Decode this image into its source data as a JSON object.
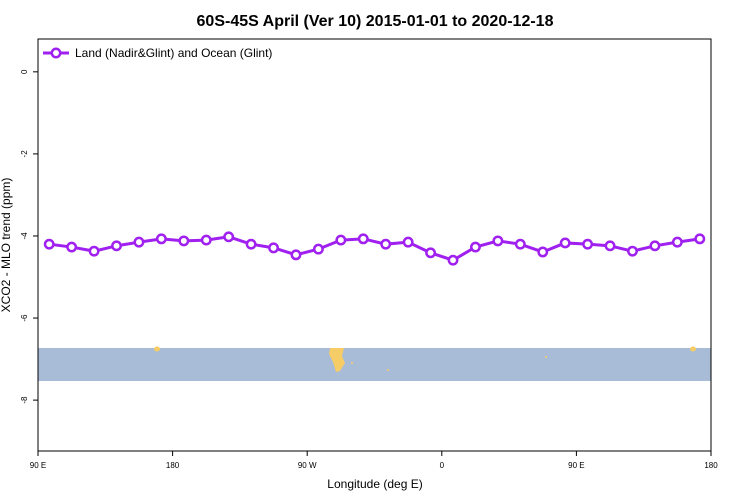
{
  "chart_data": {
    "type": "line",
    "title": "60S-45S April (Ver 10)   2015-01-01 to 2020-12-18",
    "xlabel": "Longitude (deg E)",
    "ylabel": "XCO2 - MLO trend (ppm)",
    "xlim": [
      90,
      540
    ],
    "xticks": [
      {
        "value": 90,
        "label": "90 E"
      },
      180,
      {
        "value": 270,
        "label": "90 W"
      },
      {
        "value": 360,
        "label": "0"
      },
      {
        "value": 450,
        "label": "90 E"
      },
      {
        "value": 540,
        "label": "180"
      }
    ],
    "ylim": [
      -9.24,
      0.8
    ],
    "yticks": [
      0,
      -2,
      -4,
      -6,
      -8
    ],
    "legend": "top-left",
    "x": [
      97.5,
      112.5,
      127.5,
      142.5,
      157.5,
      172.5,
      187.5,
      202.5,
      217.5,
      232.5,
      247.5,
      262.5,
      277.5,
      292.5,
      307.5,
      322.5,
      337.5,
      352.5,
      367.5,
      382.5,
      397.5,
      412.5,
      427.5,
      442.5,
      457.5,
      472.5,
      487.5,
      502.5,
      517.5,
      532.5
    ],
    "series": [
      {
        "name": "Land (Nadir&Glint) and Ocean (Glint)",
        "color": "#a020f0",
        "values": [
          -4.2,
          -4.27,
          -4.37,
          -4.24,
          -4.15,
          -4.07,
          -4.12,
          -4.1,
          -4.02,
          -4.2,
          -4.29,
          -4.46,
          -4.32,
          -4.1,
          -4.07,
          -4.2,
          -4.15,
          -4.41,
          -4.59,
          -4.27,
          -4.12,
          -4.2,
          -4.39,
          -4.17,
          -4.2,
          -4.24,
          -4.37,
          -4.24,
          -4.15,
          -4.07
        ]
      }
    ]
  }
}
